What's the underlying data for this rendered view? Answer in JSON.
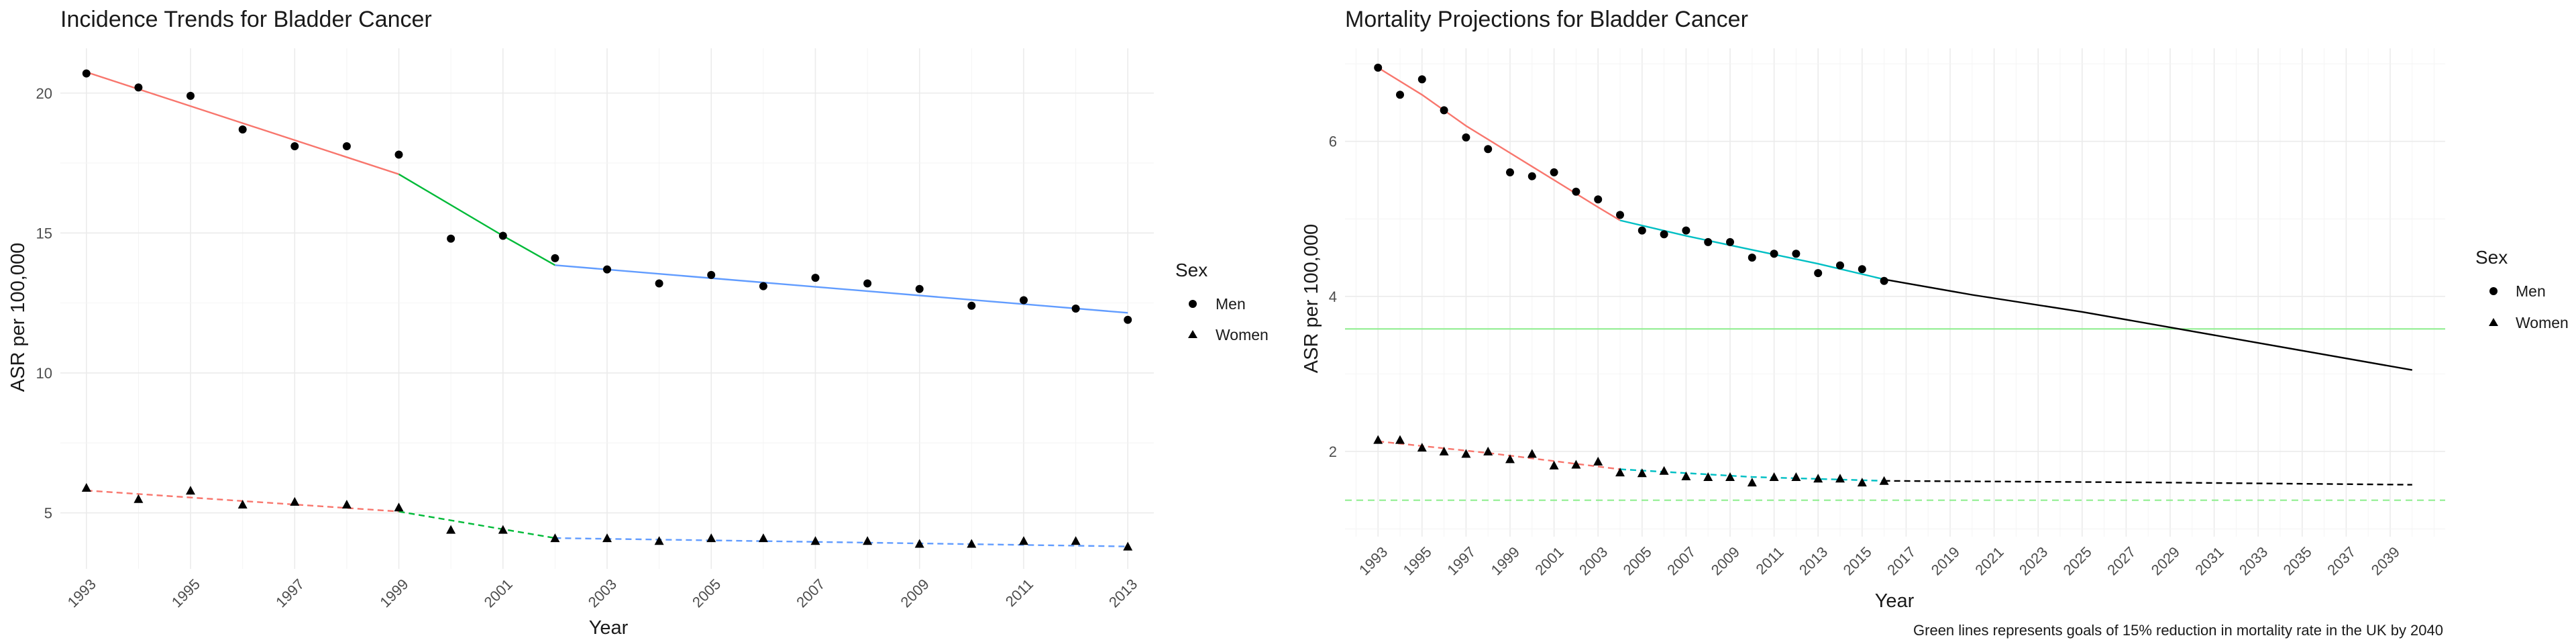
{
  "chart_data": [
    {
      "type": "line",
      "title": "Incidence Trends for Bladder Cancer",
      "xlabel": "Year",
      "ylabel": "ASR per 100,000",
      "xlim": [
        1992.5,
        2013.5
      ],
      "ylim": [
        3.0,
        21.6
      ],
      "x_ticks": [
        1993,
        1995,
        1997,
        1999,
        2001,
        2003,
        2005,
        2007,
        2009,
        2011,
        2013
      ],
      "y_ticks": [
        5,
        10,
        15,
        20
      ],
      "grid": true,
      "legend": {
        "title": "Sex",
        "position": "right",
        "items": [
          {
            "label": "Men",
            "shape": "circle"
          },
          {
            "label": "Women",
            "shape": "triangle"
          }
        ]
      },
      "points": [
        {
          "series": "Men",
          "shape": "circle",
          "x": [
            1993,
            1994,
            1995,
            1996,
            1997,
            1998,
            1999,
            2000,
            2001,
            2002,
            2003,
            2004,
            2005,
            2006,
            2007,
            2008,
            2009,
            2010,
            2011,
            2012,
            2013
          ],
          "y": [
            20.7,
            20.2,
            19.9,
            18.7,
            18.1,
            18.1,
            17.8,
            14.8,
            14.9,
            14.1,
            13.7,
            13.2,
            13.5,
            13.1,
            13.4,
            13.2,
            13.0,
            12.4,
            12.6,
            12.3,
            11.9
          ]
        },
        {
          "series": "Women",
          "shape": "triangle",
          "x": [
            1993,
            1994,
            1995,
            1996,
            1997,
            1998,
            1999,
            2000,
            2001,
            2002,
            2003,
            2004,
            2005,
            2006,
            2007,
            2008,
            2009,
            2010,
            2011,
            2012,
            2013
          ],
          "y": [
            5.9,
            5.5,
            5.8,
            5.3,
            5.4,
            5.3,
            5.2,
            4.4,
            4.4,
            4.1,
            4.1,
            4.0,
            4.1,
            4.1,
            4.0,
            4.0,
            3.9,
            3.9,
            4.0,
            4.0,
            3.8
          ]
        }
      ],
      "lines": [
        {
          "series": "Men",
          "color": "#f8766d",
          "dash": "solid",
          "x": [
            1993,
            1999
          ],
          "y": [
            20.75,
            17.1
          ]
        },
        {
          "series": "Men",
          "color": "#00ba38",
          "dash": "solid",
          "x": [
            1999,
            2001,
            2002
          ],
          "y": [
            17.1,
            14.9,
            13.85
          ]
        },
        {
          "series": "Men",
          "color": "#619cff",
          "dash": "solid",
          "x": [
            2002,
            2013
          ],
          "y": [
            13.85,
            12.15
          ]
        },
        {
          "series": "Women",
          "color": "#f8766d",
          "dash": "dashed",
          "x": [
            1993,
            1999
          ],
          "y": [
            5.8,
            5.05
          ]
        },
        {
          "series": "Women",
          "color": "#00ba38",
          "dash": "dashed",
          "x": [
            1999,
            2002
          ],
          "y": [
            5.05,
            4.1
          ]
        },
        {
          "series": "Women",
          "color": "#619cff",
          "dash": "dashed",
          "x": [
            2002,
            2013
          ],
          "y": [
            4.1,
            3.8
          ]
        }
      ]
    },
    {
      "type": "line",
      "title": "Mortality Projections for Bladder Cancer",
      "xlabel": "Year",
      "ylabel": "ASR per 100,000",
      "caption": "Green lines represents goals of 15% reduction in mortality rate in the UK by 2040",
      "xlim": [
        1991.5,
        2041.5
      ],
      "ylim": [
        0.9,
        7.2
      ],
      "x_ticks": [
        1993,
        1995,
        1997,
        1999,
        2001,
        2003,
        2005,
        2007,
        2009,
        2011,
        2013,
        2015,
        2017,
        2019,
        2021,
        2023,
        2025,
        2027,
        2029,
        2031,
        2033,
        2035,
        2037,
        2039
      ],
      "y_ticks": [
        2,
        4,
        6
      ],
      "grid": true,
      "legend": {
        "title": "Sex",
        "position": "right",
        "items": [
          {
            "label": "Men",
            "shape": "circle"
          },
          {
            "label": "Women",
            "shape": "triangle"
          }
        ]
      },
      "points": [
        {
          "series": "Men",
          "shape": "circle",
          "x": [
            1993,
            1994,
            1995,
            1996,
            1997,
            1998,
            1999,
            2000,
            2001,
            2002,
            2003,
            2004,
            2005,
            2006,
            2007,
            2008,
            2009,
            2010,
            2011,
            2012,
            2013,
            2014,
            2015,
            2016
          ],
          "y": [
            6.95,
            6.6,
            6.8,
            6.4,
            6.05,
            5.9,
            5.6,
            5.55,
            5.6,
            5.35,
            5.25,
            5.05,
            4.85,
            4.8,
            4.85,
            4.7,
            4.7,
            4.5,
            4.55,
            4.55,
            4.3,
            4.4,
            4.35,
            4.2
          ]
        },
        {
          "series": "Women",
          "shape": "triangle",
          "x": [
            1993,
            1994,
            1995,
            1996,
            1997,
            1998,
            1999,
            2000,
            2001,
            2002,
            2003,
            2004,
            2005,
            2006,
            2007,
            2008,
            2009,
            2010,
            2011,
            2012,
            2013,
            2014,
            2015,
            2016
          ],
          "y": [
            2.15,
            2.15,
            2.05,
            2.0,
            1.97,
            2.0,
            1.9,
            1.97,
            1.82,
            1.83,
            1.87,
            1.73,
            1.72,
            1.75,
            1.68,
            1.67,
            1.67,
            1.6,
            1.67,
            1.67,
            1.65,
            1.65,
            1.6,
            1.62
          ]
        }
      ],
      "lines": [
        {
          "series": "Men",
          "color": "#f8766d",
          "dash": "solid",
          "x": [
            1993,
            1995,
            1997,
            1999,
            2001,
            2003,
            2004
          ],
          "y": [
            6.95,
            6.6,
            6.2,
            5.85,
            5.5,
            5.15,
            4.98
          ]
        },
        {
          "series": "Men",
          "color": "#00bfc4",
          "dash": "solid",
          "x": [
            2004,
            2007,
            2010,
            2013,
            2016
          ],
          "y": [
            4.98,
            4.78,
            4.6,
            4.42,
            4.22
          ]
        },
        {
          "series": "Men",
          "color": "#000000",
          "dash": "solid",
          "x": [
            2016,
            2020,
            2025,
            2030,
            2035,
            2040
          ],
          "y": [
            4.22,
            4.02,
            3.8,
            3.55,
            3.3,
            3.05
          ]
        },
        {
          "series": "Women",
          "color": "#f8766d",
          "dash": "dashed",
          "x": [
            1993,
            1998,
            2004
          ],
          "y": [
            2.13,
            1.98,
            1.77
          ]
        },
        {
          "series": "Women",
          "color": "#00bfc4",
          "dash": "dashed",
          "x": [
            2004,
            2010,
            2016
          ],
          "y": [
            1.77,
            1.67,
            1.62
          ]
        },
        {
          "series": "Women",
          "color": "#000000",
          "dash": "dashed",
          "x": [
            2016,
            2028,
            2040
          ],
          "y": [
            1.62,
            1.6,
            1.57
          ]
        }
      ],
      "reference_lines": [
        {
          "y": 3.58,
          "color": "#90ee90",
          "dash": "solid"
        },
        {
          "y": 1.37,
          "color": "#90ee90",
          "dash": "dashed"
        }
      ]
    }
  ]
}
